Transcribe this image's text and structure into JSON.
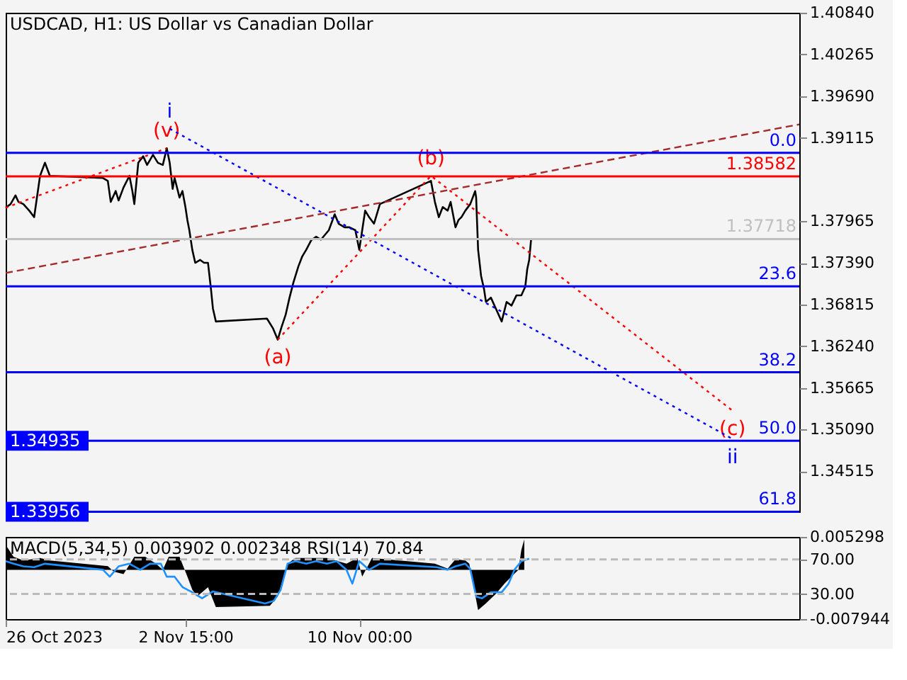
{
  "chart_data": [
    {
      "type": "line",
      "title": "USDCAD, H1:  US Dollar vs Canadian Dollar",
      "xlim": [
        "2023-10-26T00:00",
        "2023-11-28T16:00"
      ],
      "ylim": [
        1.3396,
        1.4084
      ],
      "yticks": [
        {
          "value": 1.4084,
          "label": "1.40840"
        },
        {
          "value": 1.40265,
          "label": "1.40265"
        },
        {
          "value": 1.3969,
          "label": "1.39690"
        },
        {
          "value": 1.39115,
          "label": "1.39115"
        },
        {
          "value": 1.37965,
          "label": "1.37965"
        },
        {
          "value": 1.3739,
          "label": "1.37390"
        },
        {
          "value": 1.36815,
          "label": "1.36815"
        },
        {
          "value": 1.3624,
          "label": "1.36240"
        },
        {
          "value": 1.35665,
          "label": "1.35665"
        },
        {
          "value": 1.3509,
          "label": "1.35090"
        },
        {
          "value": 1.34515,
          "label": "1.34515"
        }
      ],
      "tick_labels": "y",
      "grid": false,
      "series": [
        {
          "color": "#000000",
          "x": [
            "2023-10-26T00:00",
            "2023-10-26T05:00",
            "2023-10-26T10:00",
            "2023-10-26T13:00",
            "2023-10-26T18:00",
            "2023-10-27T00:00",
            "2023-10-27T05:00",
            "2023-10-27T11:00",
            "2023-10-27T16:00",
            "2023-10-27T21:00",
            "2023-10-30T03:00",
            "2023-10-30T08:00",
            "2023-10-30T11:00",
            "2023-10-30T16:00",
            "2023-10-30T19:00",
            "2023-10-31T00:00",
            "2023-10-31T06:00",
            "2023-10-31T09:00",
            "2023-10-31T11:00",
            "2023-10-31T15:00",
            "2023-10-31T20:00",
            "2023-11-01T00:00",
            "2023-11-01T06:00",
            "2023-11-01T11:00",
            "2023-11-01T16:00",
            "2023-11-01T20:00",
            "2023-11-01T23:00",
            "2023-11-02T02:00",
            "2023-11-02T04:00",
            "2023-11-02T09:00",
            "2023-11-02T12:00",
            "2023-11-02T15:00",
            "2023-11-02T17:00",
            "2023-11-02T19:00",
            "2023-11-02T22:00",
            "2023-11-03T01:00",
            "2023-11-03T06:00",
            "2023-11-03T10:00",
            "2023-11-03T14:00",
            "2023-11-03T17:00",
            "2023-11-03T19:00",
            "2023-11-03T22:00",
            "2023-11-06T02:00",
            "2023-11-06T08:00",
            "2023-11-06T13:00",
            "2023-11-06T17:00",
            "2023-11-06T21:00",
            "2023-11-07T01:00",
            "2023-11-07T05:00",
            "2023-11-07T10:00",
            "2023-11-07T14:00",
            "2023-11-07T18:00",
            "2023-11-07T23:00",
            "2023-11-08T04:00",
            "2023-11-08T09:00",
            "2023-11-08T17:00",
            "2023-11-08T23:00",
            "2023-11-09T03:00",
            "2023-11-09T09:00",
            "2023-11-09T14:00",
            "2023-11-09T20:00",
            "2023-11-10T00:00",
            "2023-11-10T03:00",
            "2023-11-10T06:00",
            "2023-11-10T10:00",
            "2023-11-10T15:00",
            "2023-11-10T21:00",
            "2023-11-13T01:00",
            "2023-11-13T05:00",
            "2023-11-13T09:00",
            "2023-11-13T13:00",
            "2023-11-13T18:00",
            "2023-11-13T21:00",
            "2023-11-14T00:00",
            "2023-11-14T02:00",
            "2023-11-14T05:00",
            "2023-11-14T08:00",
            "2023-11-14T12:00",
            "2023-11-14T17:00",
            "2023-11-14T22:00",
            "2023-11-14T23:00",
            "2023-11-15T01:00",
            "2023-11-15T04:00",
            "2023-11-15T07:00",
            "2023-11-15T09:00",
            "2023-11-15T14:00",
            "2023-11-15T19:00",
            "2023-11-16T01:00",
            "2023-11-16T06:00",
            "2023-11-16T11:00",
            "2023-11-16T16:00",
            "2023-11-16T21:00",
            "2023-11-17T01:00",
            "2023-11-17T03:00",
            "2023-11-17T05:00",
            "2023-11-17T07:00"
          ],
          "values": [
            1.3815,
            1.382,
            1.3832,
            1.3823,
            1.382,
            1.3811,
            1.3802,
            1.3859,
            1.3877,
            1.3859,
            1.3856,
            1.3852,
            1.3823,
            1.3838,
            1.3825,
            1.3843,
            1.3859,
            1.3838,
            1.382,
            1.3877,
            1.3886,
            1.3874,
            1.3888,
            1.3877,
            1.3874,
            1.3897,
            1.3877,
            1.3841,
            1.3856,
            1.3829,
            1.3838,
            1.3816,
            1.3798,
            1.3784,
            1.3757,
            1.3739,
            1.3743,
            1.3739,
            1.3739,
            1.3703,
            1.3676,
            1.3658,
            1.3662,
            1.3649,
            1.3633,
            1.3651,
            1.3667,
            1.3691,
            1.3712,
            1.3734,
            1.3748,
            1.3757,
            1.377,
            1.3775,
            1.3771,
            1.3784,
            1.3806,
            1.3793,
            1.3788,
            1.3788,
            1.3784,
            1.3757,
            1.3784,
            1.3811,
            1.3802,
            1.3793,
            1.382,
            1.3852,
            1.3823,
            1.3802,
            1.3816,
            1.3811,
            1.3823,
            1.3802,
            1.3788,
            1.3798,
            1.3802,
            1.3811,
            1.382,
            1.3838,
            1.3829,
            1.3757,
            1.3721,
            1.3703,
            1.3685,
            1.3691,
            1.3676,
            1.3658,
            1.3685,
            1.368,
            1.3694,
            1.3694,
            1.3706,
            1.373,
            1.3743,
            1.3772
          ]
        },
        {
          "color": "#a52a2a",
          "line_style": "dashed",
          "x": [
            "2023-10-26T00:00",
            "2023-11-28T16:00"
          ],
          "values": [
            1.3725,
            1.393
          ]
        },
        {
          "color": "#ff0000",
          "line_style": "dotted",
          "x": [
            "2023-10-26T00:00",
            "2023-11-01T20:00"
          ],
          "values": [
            1.3815,
            1.3897
          ],
          "value_labels": [
            null,
            "(v)"
          ]
        },
        {
          "color": "#ff0000",
          "line_style": "dotted",
          "x": [
            "2023-11-06T13:00",
            "2023-11-13T01:00",
            "2023-11-25T20:00"
          ],
          "values": [
            1.3633,
            1.3859,
            1.3535
          ],
          "value_labels": [
            "(a)",
            "(b)",
            "(c)"
          ]
        },
        {
          "color": "#0000ff",
          "line_style": "dotted",
          "x": [
            "2023-11-01T23:00",
            "2023-11-25T20:00"
          ],
          "values": [
            1.3924,
            1.3496
          ],
          "value_labels": [
            "i",
            "ii"
          ]
        }
      ],
      "ref_lines": [
        {
          "axis": "y",
          "value": 1.38907,
          "color": "#0000ff"
        },
        {
          "axis": "y",
          "value": 1.38582,
          "label": "1.38582",
          "color": "#ff0000"
        },
        {
          "axis": "y",
          "value": 1.37718,
          "label": "1.37718",
          "color": "#c0c0c0"
        },
        {
          "axis": "y",
          "value": 1.37066,
          "color": "#0000ff"
        },
        {
          "axis": "y",
          "value": 1.3588,
          "color": "#0000ff"
        },
        {
          "axis": "y",
          "value": 1.34935,
          "color": "#0000ff"
        },
        {
          "axis": "y",
          "value": 1.33956,
          "color": "#0000ff"
        }
      ],
      "annotations": [
        {
          "text": "0.0",
          "x": "2023-11-28T16:00",
          "y": 1.38907
        },
        {
          "text": "23.6",
          "x": "2023-11-28T16:00",
          "y": 1.37066
        },
        {
          "text": "38.2",
          "x": "2023-11-28T16:00",
          "y": 1.3588
        },
        {
          "text": "50.0",
          "x": "2023-11-28T16:00",
          "y": 1.34935
        },
        {
          "text": "61.8",
          "x": "2023-11-28T16:00",
          "y": 1.33956
        },
        {
          "text": "1.34935",
          "x": "2023-10-26T00:00",
          "y": 1.34935
        },
        {
          "text": "1.33956",
          "x": "2023-10-26T00:00",
          "y": 1.33956
        }
      ]
    },
    {
      "type": "area",
      "title": "MACD(5,34,5) 0.003902 0.002348 RSI(14) 70.84",
      "xlim": [
        "2023-10-26T00:00",
        "2023-11-28T16:00"
      ],
      "xticks": [
        {
          "value": "2023-10-26T00:00",
          "label": "26 Oct 2023"
        },
        {
          "value": "2023-11-02T15:00",
          "label": "2 Nov 15:00"
        },
        {
          "value": "2023-11-10T00:00",
          "label": "10 Nov 00:00"
        }
      ],
      "ylim": [
        -0.007944,
        0.005298
      ],
      "yticks": [
        {
          "value": 0.005298,
          "label": "0.005298"
        },
        {
          "value": -0.007944,
          "label": "-0.007944"
        }
      ],
      "y2lim": [
        1,
        96
      ],
      "y2ticks": [
        {
          "value": 70,
          "label": "70.00"
        },
        {
          "value": 30,
          "label": "30.00"
        }
      ],
      "grid": false,
      "series": [
        {
          "color": "#000000",
          "x": [
            "2023-10-26T00:00",
            "2023-10-26T08:00",
            "2023-10-26T18:00",
            "2023-10-27T11:00",
            "2023-10-27T21:00",
            "2023-10-30T08:00",
            "2023-10-30T14:00",
            "2023-10-31T00:00",
            "2023-10-31T11:00",
            "2023-10-31T22:00",
            "2023-11-01T09:00",
            "2023-11-01T16:00",
            "2023-11-01T22:00",
            "2023-11-02T09:00",
            "2023-11-02T17:00",
            "2023-11-02T22:00",
            "2023-11-03T03:00",
            "2023-11-03T14:00",
            "2023-11-03T22:00",
            "2023-11-06T05:00",
            "2023-11-06T13:00",
            "2023-11-06T17:00",
            "2023-11-06T23:00",
            "2023-11-07T07:00",
            "2023-11-07T18:00",
            "2023-11-08T15:00",
            "2023-11-09T11:00",
            "2023-11-09T22:00",
            "2023-11-10T03:00",
            "2023-11-10T13:00",
            "2023-11-13T05:00",
            "2023-11-13T18:00",
            "2023-11-14T02:00",
            "2023-11-14T12:00",
            "2023-11-14T16:00",
            "2023-11-14T21:00",
            "2023-11-15T01:00",
            "2023-11-15T09:00",
            "2023-11-15T19:00",
            "2023-11-16T04:00",
            "2023-11-16T11:00",
            "2023-11-16T18:00",
            "2023-11-16T21:00",
            "2023-11-17T00:00"
          ],
          "values": [
            0.004,
            0.0021,
            0.0015,
            0.0019,
            0.0015,
            0.0006,
            -0.0003,
            -0.0007,
            0.0021,
            0.0021,
            0.001,
            0.0,
            0.0021,
            0.0021,
            -0.0011,
            -0.0032,
            -0.0043,
            -0.0028,
            -0.006,
            -0.0058,
            -0.0043,
            -0.0022,
            0.001,
            0.0019,
            0.0019,
            0.0019,
            0.001,
            0.0019,
            -0.0011,
            0.0019,
            0.001,
            0.0002,
            0.0017,
            0.0015,
            0.001,
            -0.0032,
            -0.0065,
            -0.0054,
            -0.0039,
            -0.0022,
            -0.0011,
            0.0,
            0.0032,
            0.0049
          ]
        },
        {
          "type": "line",
          "axis": "y2",
          "color": "#1e90ff",
          "x": [
            "2023-10-26T00:00",
            "2023-10-26T08:00",
            "2023-10-26T18:00",
            "2023-10-27T05:00",
            "2023-10-27T16:00",
            "2023-10-30T03:00",
            "2023-10-30T10:00",
            "2023-10-30T19:00",
            "2023-10-31T06:00",
            "2023-10-31T17:00",
            "2023-11-01T03:00",
            "2023-11-01T14:00",
            "2023-11-01T20:00",
            "2023-11-02T04:00",
            "2023-11-02T12:00",
            "2023-11-02T22:00",
            "2023-11-03T08:00",
            "2023-11-03T19:00",
            "2023-11-06T00:00",
            "2023-11-06T09:00",
            "2023-11-06T16:00",
            "2023-11-06T23:00",
            "2023-11-07T07:00",
            "2023-11-07T18:00",
            "2023-11-08T04:00",
            "2023-11-08T15:00",
            "2023-11-09T01:00",
            "2023-11-09T11:00",
            "2023-11-09T17:00",
            "2023-11-10T00:00",
            "2023-11-10T10:00",
            "2023-11-10T21:00",
            "2023-11-13T07:00",
            "2023-11-13T18:00",
            "2023-11-14T02:00",
            "2023-11-14T12:00",
            "2023-11-14T17:00",
            "2023-11-14T23:00",
            "2023-11-15T05:00",
            "2023-11-15T14:00",
            "2023-11-16T01:00",
            "2023-11-16T08:00",
            "2023-11-16T14:00",
            "2023-11-16T21:00",
            "2023-11-17T05:00"
          ],
          "values": [
            68,
            65,
            62,
            61,
            65,
            58,
            50,
            62,
            65,
            58,
            65,
            65,
            50,
            50,
            38,
            32,
            25,
            33,
            19,
            22,
            35,
            65,
            68,
            65,
            68,
            65,
            68,
            58,
            42,
            68,
            58,
            65,
            61,
            58,
            62,
            65,
            59,
            27,
            25,
            32,
            32,
            42,
            58,
            68,
            70.84
          ]
        }
      ],
      "ref_lines": [
        {
          "axis": "y2",
          "value": 70,
          "color": "#bbbbbb",
          "line_style": "dashed"
        },
        {
          "axis": "y2",
          "value": 30,
          "color": "#bbbbbb",
          "line_style": "dashed"
        }
      ]
    }
  ]
}
